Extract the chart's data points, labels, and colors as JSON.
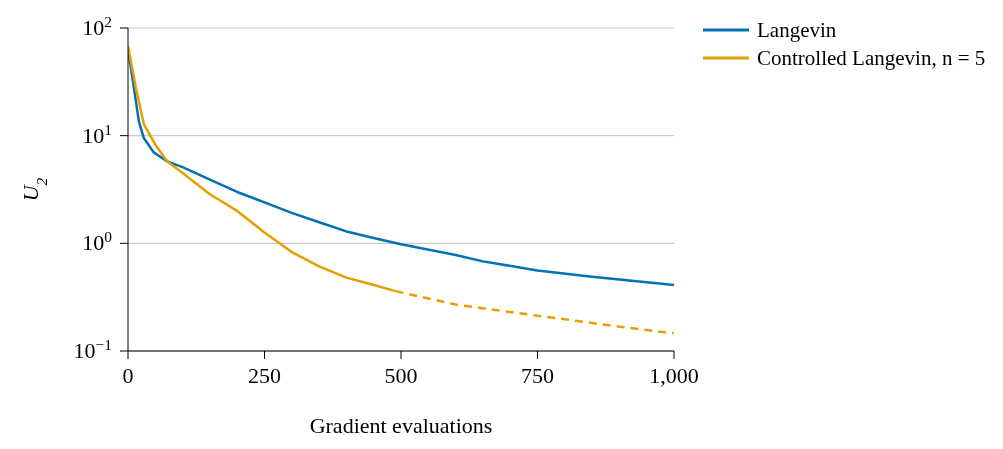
{
  "chart_data": {
    "type": "line",
    "xlabel": "Gradient evaluations",
    "ylabel": "U$_{2}$",
    "log": "y",
    "grid": "y",
    "legend": "top right",
    "marker": "none",
    "xlim": [
      0,
      1000
    ],
    "xticks": [
      0,
      250,
      500,
      750,
      {
        "value": 1000,
        "label": "1,000"
      }
    ],
    "ylim": [
      0.1,
      100
    ],
    "yticks": [
      {
        "value": 0.1,
        "label": "10$^{−1}$"
      },
      {
        "value": 1,
        "label": "10$^{0}$"
      },
      {
        "value": 10,
        "label": "10$^{1}$"
      },
      {
        "value": 100,
        "label": "10$^{2}$"
      }
    ],
    "series": [
      {
        "name": "Langevin",
        "color": "#0072b2",
        "line_style": "solid",
        "x": [
          0,
          2,
          20,
          29,
          47,
          72,
          100,
          150,
          200,
          250,
          300,
          350,
          400,
          450,
          500,
          600,
          650,
          750,
          850,
          1000
        ],
        "values": [
          57,
          55,
          13.5,
          9.5,
          7.0,
          5.75,
          5.1,
          3.9,
          3.0,
          2.4,
          1.92,
          1.57,
          1.29,
          1.12,
          0.98,
          0.78,
          0.68,
          0.56,
          0.49,
          0.41
        ]
      },
      {
        "name": "Controlled Langevin, n = 5",
        "color": "#e69f00",
        "line_style": "solid",
        "x": [
          0,
          15,
          29,
          51,
          72,
          100,
          150,
          200,
          250,
          300,
          350,
          400,
          450,
          490
        ],
        "values": [
          68,
          27,
          12.8,
          8.1,
          5.75,
          4.5,
          2.86,
          2.0,
          1.26,
          0.83,
          0.61,
          0.48,
          0.41,
          0.36
        ]
      },
      {
        "color": "#e69f00",
        "line_style": "dashed",
        "x": [
          490,
          600,
          700,
          800,
          900,
          1000
        ],
        "values": [
          0.36,
          0.27,
          0.23,
          0.197,
          0.168,
          0.146
        ]
      }
    ]
  }
}
